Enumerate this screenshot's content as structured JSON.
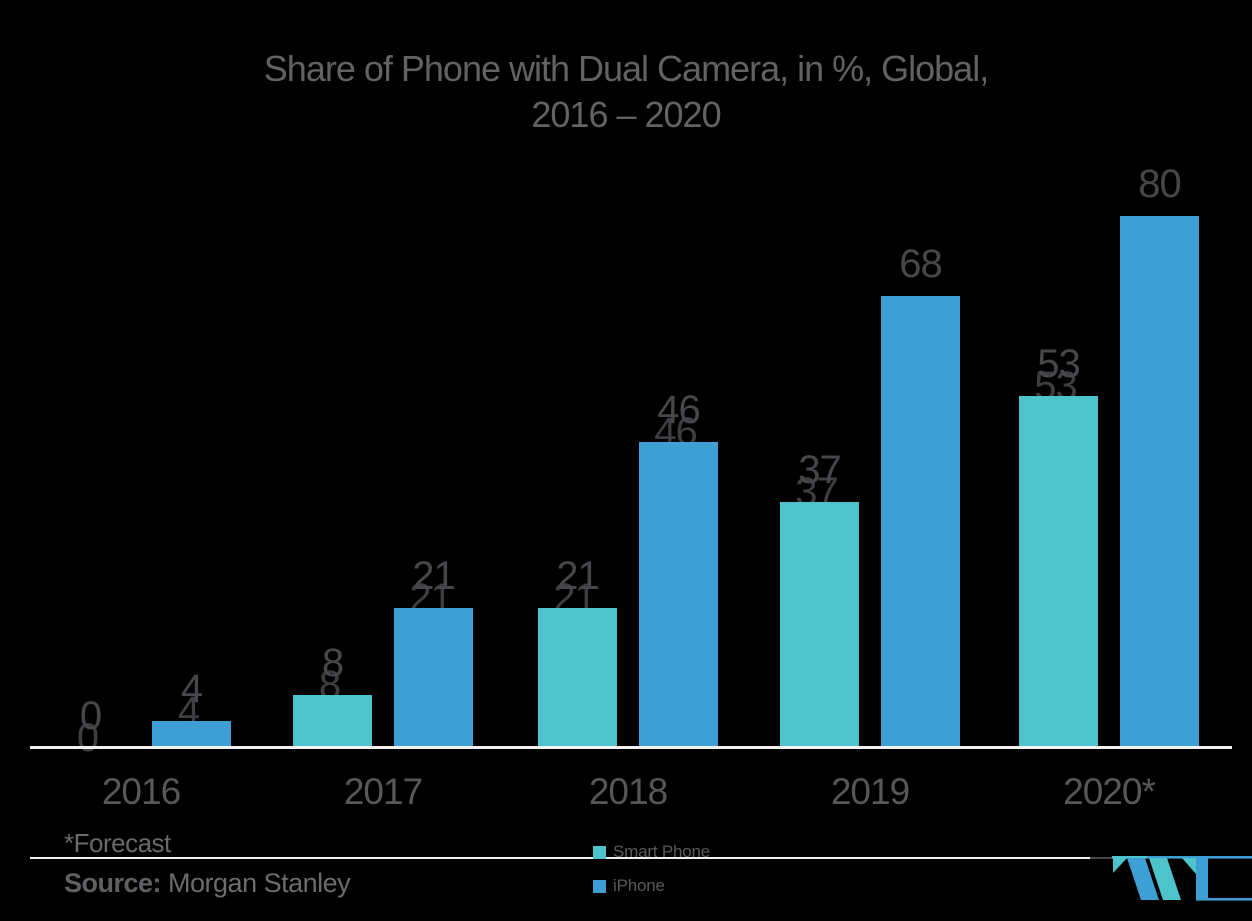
{
  "title": {
    "line1": "Share of Phone with Dual Camera, in %, Global,",
    "line2": "2016 – 2020"
  },
  "chart_data": {
    "type": "bar",
    "title": "Share of Phone with Dual Camera, in %, Global, 2016 – 2020",
    "categories": [
      "2016",
      "2017",
      "2018",
      "2019",
      "2020*"
    ],
    "series": [
      {
        "name": "Smart Phone",
        "color": "#4FC3CB",
        "values": [
          0,
          8,
          21,
          37,
          53
        ]
      },
      {
        "name": "iPhone",
        "color": "#3D9FD3",
        "values": [
          4,
          21,
          46,
          68,
          80
        ]
      }
    ],
    "value_labels": true,
    "xlabel": "",
    "ylabel": "",
    "ylim": [
      0,
      80
    ],
    "grid": false,
    "axis_shown": "x-baseline-only",
    "legend_position": "bottom-center"
  },
  "footer": {
    "forecast_note": "*Forecast",
    "source_label": "Source:",
    "source_value": "Morgan Stanley"
  },
  "logo": {
    "name": "mordor-intelligence-m-mark",
    "teal": "#4FC3CB",
    "blue": "#3D9FD3"
  },
  "colors": {
    "background": "#000000",
    "title_text": "#626265",
    "value_label_text": "#47474B",
    "tick_text": "#57575A",
    "axis_line": "#F2F2F3",
    "footer_text": "#6B6C6F",
    "series_teal": "#4FC3CB",
    "series_blue": "#3D9FD3"
  }
}
